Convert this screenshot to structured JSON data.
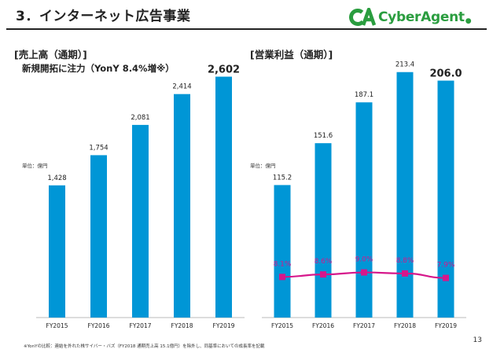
{
  "header": {
    "title": "3．インターネット広告事業",
    "logo_text": "CyberAgent",
    "logo_mark": "CA"
  },
  "page_number": "13",
  "footnote": "※YonYの比較：連結を外れた株サイバー・バズ（FY2018 通期売上高 15.1億円）を除外し、同基準においての成長率を記載",
  "colors": {
    "bar": "#0096d6",
    "line": "#d6178b",
    "logo": "#2a9d3f"
  },
  "chart_data": [
    {
      "type": "bar",
      "title": "[売上高（通期）]",
      "subtitle": "新規開拓に注力（YonY 8.4%増※）",
      "unit_label": "単位：億円",
      "categories": [
        "FY2015",
        "FY2016",
        "FY2017",
        "FY2018",
        "FY2019"
      ],
      "values": [
        1428,
        1754,
        2081,
        2414,
        2602
      ],
      "value_labels": [
        "1,428",
        "1,754",
        "2,081",
        "2,414",
        "2,602"
      ],
      "highlight_last": true,
      "ylim": [
        0,
        2700
      ]
    },
    {
      "type": "bar",
      "title": "[営業利益（通期）]",
      "unit_label": "単位：億円",
      "categories": [
        "FY2015",
        "FY2016",
        "FY2017",
        "FY2018",
        "FY2019"
      ],
      "values": [
        115.2,
        151.6,
        187.1,
        213.4,
        206.0
      ],
      "value_labels": [
        "115.2",
        "151.6",
        "187.1",
        "213.4",
        "206.0"
      ],
      "highlight_last": true,
      "ylim": [
        0,
        218
      ],
      "line_series": {
        "type": "line",
        "values": [
          8.1,
          8.6,
          9.0,
          8.8,
          7.9
        ],
        "value_labels": [
          "8.1%",
          "8.6%",
          "9.0%",
          "8.8%",
          "7.9%"
        ],
        "ylim": [
          0,
          50
        ]
      }
    }
  ]
}
